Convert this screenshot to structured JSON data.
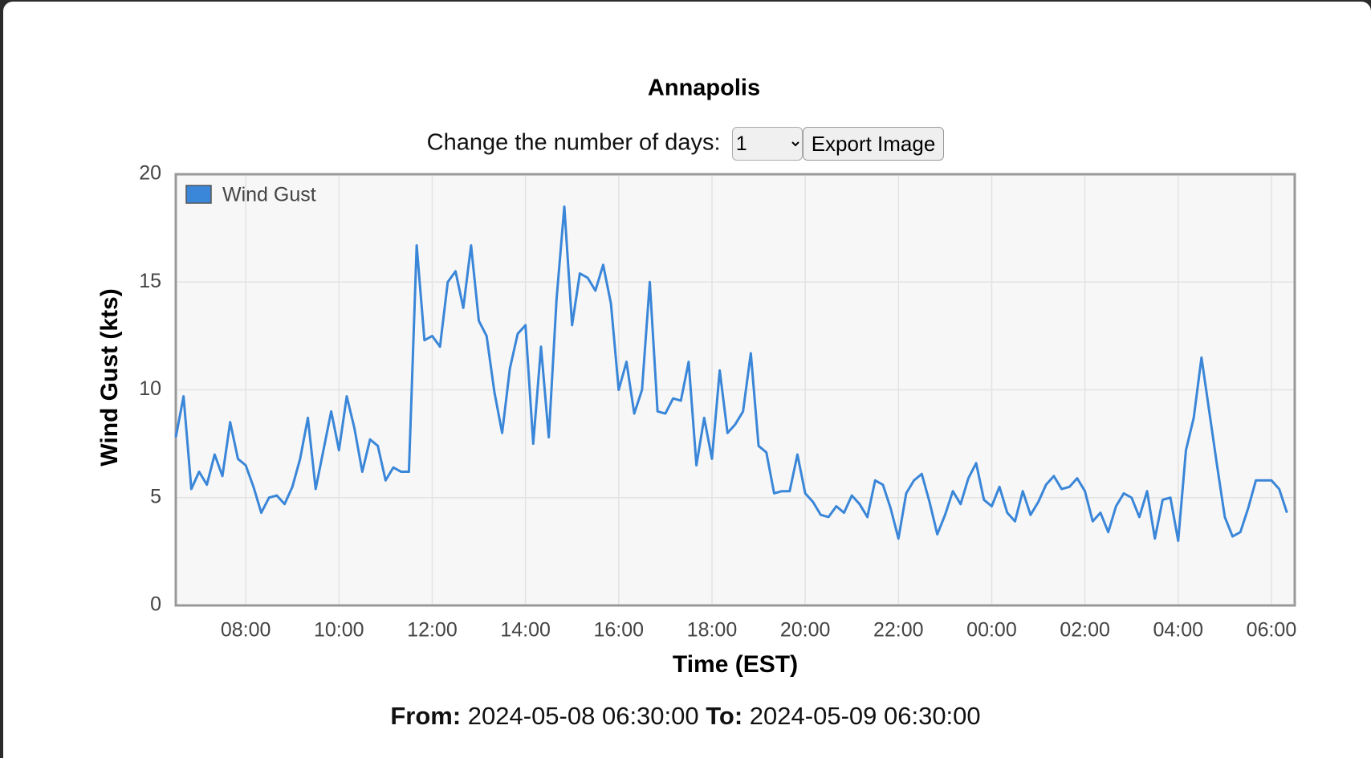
{
  "chart_data": {
    "type": "line",
    "title": "Annapolis",
    "xlabel": "Time (EST)",
    "ylabel": "Wind Gust (kts)",
    "x": [
      "06:30",
      "06:40",
      "06:50",
      "07:00",
      "07:10",
      "07:20",
      "07:30",
      "07:40",
      "07:50",
      "08:00",
      "08:10",
      "08:20",
      "08:30",
      "08:40",
      "08:50",
      "09:00",
      "09:10",
      "09:20",
      "09:30",
      "09:40",
      "09:50",
      "10:00",
      "10:10",
      "10:20",
      "10:30",
      "10:40",
      "10:50",
      "11:00",
      "11:10",
      "11:20",
      "11:30",
      "11:40",
      "11:50",
      "12:00",
      "12:10",
      "12:20",
      "12:30",
      "12:40",
      "12:50",
      "13:00",
      "13:10",
      "13:20",
      "13:30",
      "13:40",
      "13:50",
      "14:00",
      "14:10",
      "14:20",
      "14:30",
      "14:40",
      "14:50",
      "15:00",
      "15:10",
      "15:20",
      "15:30",
      "15:40",
      "15:50",
      "16:00",
      "16:10",
      "16:20",
      "16:30",
      "16:40",
      "16:50",
      "17:00",
      "17:10",
      "17:20",
      "17:30",
      "17:40",
      "17:50",
      "18:00",
      "18:10",
      "18:20",
      "18:30",
      "18:40",
      "18:50",
      "19:00",
      "19:10",
      "19:20",
      "19:30",
      "19:40",
      "19:50",
      "20:00",
      "20:10",
      "20:20",
      "20:30",
      "20:40",
      "20:50",
      "21:00",
      "21:10",
      "21:20",
      "21:30",
      "21:40",
      "21:50",
      "22:00",
      "22:10",
      "22:20",
      "22:30",
      "22:40",
      "22:50",
      "23:00",
      "23:10",
      "23:20",
      "23:30",
      "23:40",
      "23:50",
      "00:00",
      "00:10",
      "00:20",
      "00:30",
      "00:40",
      "00:50",
      "01:00",
      "01:10",
      "01:20",
      "01:30",
      "01:40",
      "01:50",
      "02:00",
      "02:10",
      "02:20",
      "02:30",
      "02:40",
      "02:50",
      "03:00",
      "03:10",
      "03:20",
      "03:30",
      "03:40",
      "03:50",
      "04:00",
      "04:10",
      "04:20",
      "04:30",
      "04:40",
      "04:50",
      "05:00",
      "05:10",
      "05:20",
      "05:30",
      "05:40",
      "05:50",
      "06:00",
      "06:10",
      "06:20"
    ],
    "series": [
      {
        "name": "Wind Gust",
        "color": "#3a86d8",
        "values": [
          7.8,
          9.7,
          5.4,
          6.2,
          5.6,
          7.0,
          6.0,
          8.5,
          6.8,
          6.5,
          5.5,
          4.3,
          5.0,
          5.1,
          4.7,
          5.5,
          6.8,
          8.7,
          5.4,
          7.2,
          9.0,
          7.2,
          9.7,
          8.2,
          6.2,
          7.7,
          7.4,
          5.8,
          6.4,
          6.2,
          6.2,
          16.7,
          12.3,
          12.5,
          12.0,
          15.0,
          15.5,
          13.8,
          16.7,
          13.2,
          12.5,
          9.9,
          8.0,
          11.0,
          12.6,
          13.0,
          7.5,
          12.0,
          7.8,
          14.2,
          18.5,
          13.0,
          15.4,
          15.2,
          14.6,
          15.8,
          14.0,
          10.0,
          11.3,
          8.9,
          10.0,
          15.0,
          9.0,
          8.9,
          9.6,
          9.5,
          11.3,
          6.5,
          8.7,
          6.8,
          10.9,
          8.0,
          8.4,
          9.0,
          11.7,
          7.4,
          7.1,
          5.2,
          5.3,
          5.3,
          7.0,
          5.2,
          4.8,
          4.2,
          4.1,
          4.6,
          4.3,
          5.1,
          4.7,
          4.1,
          5.8,
          5.6,
          4.5,
          3.1,
          5.2,
          5.8,
          6.1,
          4.8,
          3.3,
          4.2,
          5.3,
          4.7,
          5.9,
          6.6,
          4.9,
          4.6,
          5.5,
          4.3,
          3.9,
          5.3,
          4.2,
          4.8,
          5.6,
          6.0,
          5.4,
          5.5,
          5.9,
          5.3,
          3.9,
          4.3,
          3.4,
          4.6,
          5.2,
          5.0,
          4.1,
          5.3,
          3.1,
          4.9,
          5.0,
          3.0,
          7.2,
          8.7,
          11.5,
          9.0,
          6.5,
          4.1,
          3.2,
          3.4,
          4.5,
          5.8,
          5.8,
          5.8,
          5.4,
          4.3
        ]
      }
    ],
    "xlim": [
      "06:30",
      "06:30"
    ],
    "xticks": [
      "08:00",
      "10:00",
      "12:00",
      "14:00",
      "16:00",
      "18:00",
      "20:00",
      "22:00",
      "00:00",
      "02:00",
      "04:00",
      "06:00"
    ],
    "ylim": [
      0,
      20
    ],
    "yticks": [
      0,
      5,
      10,
      15,
      20
    ],
    "grid": true,
    "legend": "upper-left"
  },
  "controls": {
    "label": "Change the number of days:",
    "days": "1",
    "button": "Export Image"
  },
  "footer": {
    "from_label": "From:",
    "from": "2024-05-08 06:30:00",
    "to_label": "To:",
    "to": "2024-05-09 06:30:00"
  }
}
